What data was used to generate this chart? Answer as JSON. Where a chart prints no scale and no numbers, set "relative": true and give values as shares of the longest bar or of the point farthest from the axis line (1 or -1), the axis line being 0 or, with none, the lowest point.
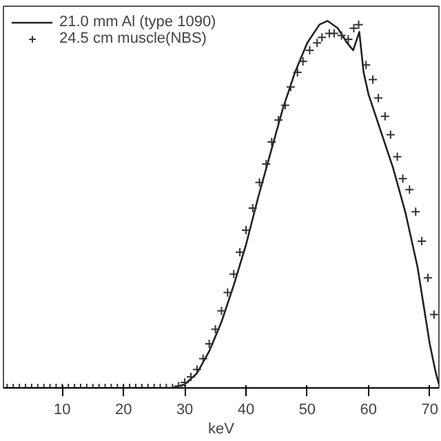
{
  "chart_data": {
    "type": "line",
    "xlabel": "keV",
    "relative": true,
    "xlim": [
      0.4,
      71.5
    ],
    "xticks": [
      10,
      20,
      30,
      40,
      50,
      60,
      70
    ],
    "tick_labels": "x",
    "grid": false,
    "legend": "top left",
    "series": [
      {
        "name": "21.0 mm Al (type 1090)",
        "color": "#222222",
        "marker": "none",
        "line_style": "solid",
        "x": [
          0.4,
          10,
          20,
          28,
          30,
          32,
          34,
          36,
          38,
          40,
          42,
          44,
          46,
          48,
          50,
          52,
          53.3,
          55,
          56.5,
          57.5,
          58.5,
          59.2,
          60,
          62,
          64,
          66,
          68,
          70,
          71,
          71.5
        ],
        "values": [
          0,
          0,
          0,
          0,
          0.01,
          0.04,
          0.1,
          0.18,
          0.28,
          0.39,
          0.52,
          0.64,
          0.76,
          0.86,
          0.94,
          0.99,
          1.0,
          0.98,
          0.94,
          0.92,
          0.97,
          0.86,
          0.8,
          0.7,
          0.6,
          0.48,
          0.33,
          0.12,
          0.04,
          0.01
        ]
      },
      {
        "name": "24.5 cm muscle(NBS)",
        "color": "#333333",
        "type": "scatter",
        "marker": "cross",
        "x": [
          1,
          2,
          3,
          4,
          5,
          6,
          7,
          8,
          9,
          10,
          11,
          12,
          13,
          14,
          15,
          16,
          17,
          18,
          19,
          20,
          21,
          22,
          23,
          24,
          25,
          26,
          27,
          28,
          29,
          30,
          31,
          32,
          33,
          34,
          35,
          36,
          37,
          38,
          39,
          40,
          41.1,
          42.2,
          43.3,
          44.2,
          45.3,
          46.4,
          47.3,
          48.4,
          49.3,
          50.4,
          51.6,
          52.4,
          53.6,
          54.4,
          55.6,
          56.7,
          57.6,
          58.4,
          59.6,
          60.7,
          61.6,
          62.7,
          63.6,
          64.7,
          65.6,
          66.7,
          67.7,
          68.7,
          69.7,
          70.7
        ],
        "values": [
          0,
          0,
          0,
          0,
          0,
          0,
          0,
          0,
          0,
          0,
          0,
          0,
          0,
          0,
          0,
          0,
          0,
          0,
          0,
          0,
          0,
          0,
          0,
          0,
          0,
          0,
          0,
          0,
          0.005,
          0.015,
          0.03,
          0.05,
          0.08,
          0.12,
          0.16,
          0.21,
          0.26,
          0.31,
          0.37,
          0.43,
          0.49,
          0.56,
          0.61,
          0.67,
          0.73,
          0.77,
          0.82,
          0.86,
          0.89,
          0.92,
          0.94,
          0.955,
          0.966,
          0.966,
          0.96,
          0.95,
          0.98,
          0.99,
          0.88,
          0.84,
          0.79,
          0.74,
          0.69,
          0.63,
          0.57,
          0.54,
          0.48,
          0.4,
          0.3,
          0.2
        ]
      }
    ]
  }
}
